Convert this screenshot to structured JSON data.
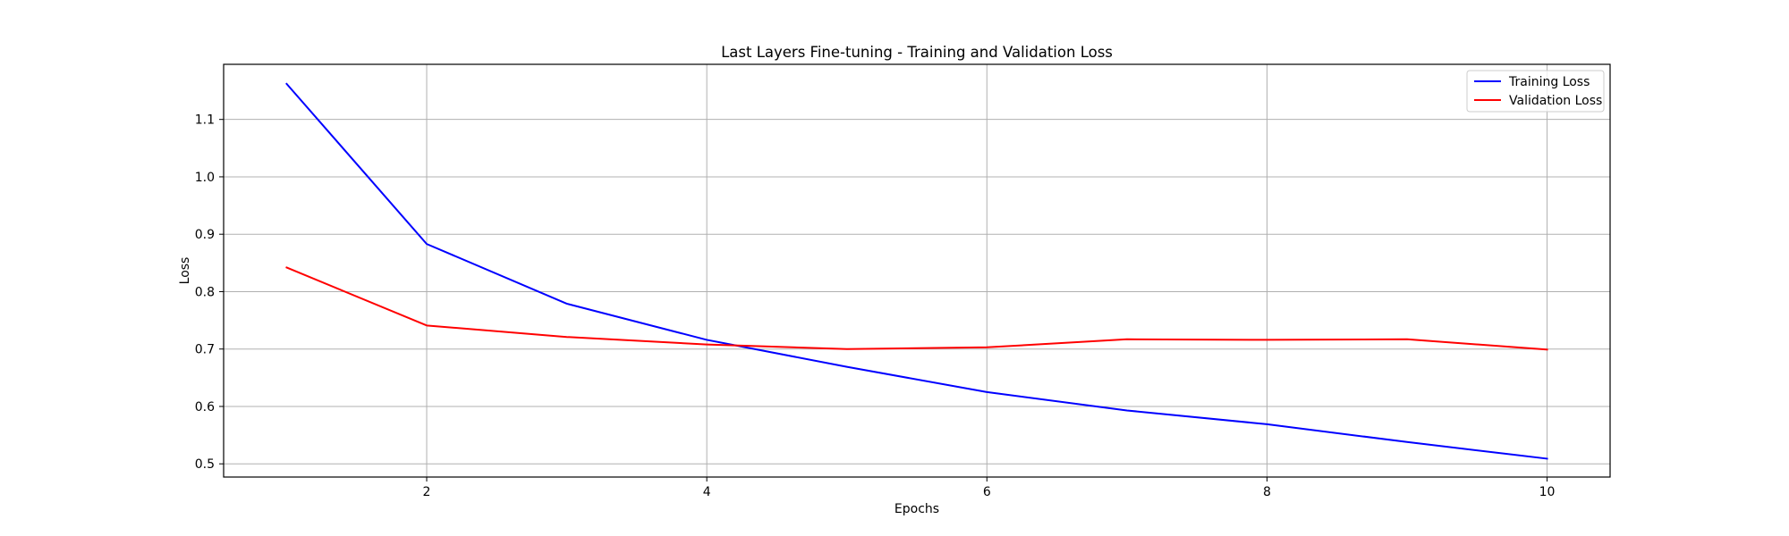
{
  "chart_data": {
    "type": "line",
    "title": "Last Layers Fine-tuning - Training and Validation Loss",
    "xlabel": "Epochs",
    "ylabel": "Loss",
    "x": [
      1,
      2,
      3,
      4,
      5,
      6,
      7,
      8,
      9,
      10
    ],
    "xlim": [
      0.55,
      10.45
    ],
    "ylim": [
      0.477,
      1.196
    ],
    "xticks": [
      2,
      4,
      6,
      8,
      10
    ],
    "yticks": [
      0.5,
      0.6,
      0.7,
      0.8,
      0.9,
      1.0,
      1.1
    ],
    "grid": true,
    "legend_position": "top-right",
    "series": [
      {
        "name": "Training Loss",
        "color": "#0000ff",
        "values": [
          1.162,
          0.883,
          0.779,
          0.716,
          0.669,
          0.625,
          0.593,
          0.569,
          0.538,
          0.509
        ]
      },
      {
        "name": "Validation Loss",
        "color": "#ff0000",
        "values": [
          0.842,
          0.741,
          0.721,
          0.708,
          0.7,
          0.703,
          0.717,
          0.716,
          0.717,
          0.699
        ]
      }
    ]
  }
}
